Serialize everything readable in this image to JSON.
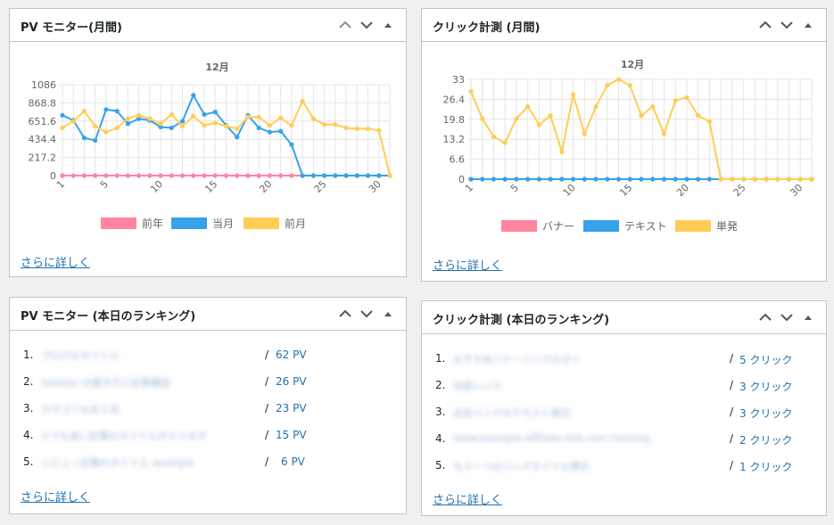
{
  "colors": {
    "prev": "#ff85a1",
    "cur": "#36a2eb",
    "last": "#ffcd56",
    "link": "#2271b1"
  },
  "widgets": {
    "pv_monthly": {
      "title": "PV モニター(月間)",
      "more_label": "さらに詳しく"
    },
    "click_monthly": {
      "title": "クリック計測 (月間)",
      "more_label": "さらに詳しく"
    },
    "pv_ranking": {
      "title": "PV モニター (本日のランキング)",
      "more_label": "さらに詳しく",
      "rows": [
        {
          "num": "1.",
          "name": "ブログのタイトル",
          "sep": "/",
          "value": "62 PV"
        },
        {
          "num": "2.",
          "name": "Sshelps の書き方と記事構成",
          "sep": "/",
          "value": "26 PV"
        },
        {
          "num": "3.",
          "name": "カテゴリのまとめ",
          "sep": "/",
          "value": "23 PV"
        },
        {
          "num": "4.",
          "name": "とても長い記事のタイトルが入ります",
          "sep": "/",
          "value": "15 PV"
        },
        {
          "num": "5.",
          "name": "レビュー記事のタイトル example",
          "sep": "/",
          "value": "6 PV"
        }
      ]
    },
    "click_ranking": {
      "title": "クリック計測 (本日のランキング)",
      "more_label": "さらに詳しく",
      "rows": [
        {
          "num": "1.",
          "name": "おすすめバナーリンクのタイトル",
          "sep": "/",
          "value": "5 クリック"
        },
        {
          "num": "2.",
          "name": "外部リンク",
          "sep": "/",
          "value": "3 クリック"
        },
        {
          "num": "3.",
          "name": "広告リンクのテキスト表示",
          "sep": "/",
          "value": "3 クリック"
        },
        {
          "num": "4.",
          "name": "www.example-affiliate-link.com tracking",
          "sep": "/",
          "value": "2 クリック"
        },
        {
          "num": "5.",
          "name": "もう一つのリンクタイトル表示",
          "sep": "/",
          "value": "1 クリック"
        }
      ]
    }
  },
  "chart_data": [
    {
      "type": "line",
      "title": "12月",
      "x_ticks": [
        "1",
        "5",
        "10",
        "15",
        "20",
        "25",
        "30"
      ],
      "y_ticks": [
        "0",
        "217.2",
        "434.4",
        "651.6",
        "868.8",
        "1086"
      ],
      "ylim": [
        0,
        1086
      ],
      "x": [
        1,
        2,
        3,
        4,
        5,
        6,
        7,
        8,
        9,
        10,
        11,
        12,
        13,
        14,
        15,
        16,
        17,
        18,
        19,
        20,
        21,
        22,
        23,
        24,
        25,
        26,
        27,
        28,
        29,
        30,
        31
      ],
      "series": [
        {
          "name": "前年",
          "color": "#ff85a1",
          "values": [
            0,
            0,
            0,
            0,
            0,
            0,
            0,
            0,
            0,
            0,
            0,
            0,
            0,
            0,
            0,
            0,
            0,
            0,
            0,
            0,
            0,
            0,
            0,
            0,
            0,
            0,
            0,
            0,
            0,
            0,
            0
          ]
        },
        {
          "name": "当月",
          "color": "#36a2eb",
          "values": [
            720,
            660,
            450,
            420,
            790,
            770,
            620,
            680,
            660,
            580,
            570,
            650,
            960,
            730,
            760,
            600,
            460,
            720,
            570,
            520,
            530,
            370,
            0,
            0,
            0,
            0,
            0,
            0,
            0,
            0,
            0
          ]
        },
        {
          "name": "前月",
          "color": "#ffcd56",
          "values": [
            570,
            650,
            770,
            590,
            520,
            570,
            680,
            720,
            680,
            620,
            730,
            590,
            710,
            600,
            630,
            590,
            560,
            700,
            700,
            600,
            690,
            600,
            890,
            680,
            610,
            610,
            570,
            560,
            560,
            540,
            0
          ]
        }
      ]
    },
    {
      "type": "line",
      "title": "12月",
      "x_ticks": [
        "1",
        "5",
        "10",
        "15",
        "20",
        "25",
        "30"
      ],
      "y_ticks": [
        "0",
        "6.6",
        "13.2",
        "19.8",
        "26.4",
        "33"
      ],
      "ylim": [
        0,
        33
      ],
      "x": [
        1,
        2,
        3,
        4,
        5,
        6,
        7,
        8,
        9,
        10,
        11,
        12,
        13,
        14,
        15,
        16,
        17,
        18,
        19,
        20,
        21,
        22,
        23,
        24,
        25,
        26,
        27,
        28,
        29,
        30,
        31
      ],
      "series": [
        {
          "name": "バナー",
          "color": "#ff85a1",
          "values": [
            0,
            0,
            0,
            0,
            0,
            0,
            0,
            0,
            0,
            0,
            0,
            0,
            0,
            0,
            0,
            0,
            0,
            0,
            0,
            0,
            0,
            0,
            0,
            0,
            0,
            0,
            0,
            0,
            0,
            0,
            0
          ]
        },
        {
          "name": "テキスト",
          "color": "#36a2eb",
          "values": [
            0,
            0,
            0,
            0,
            0,
            0,
            0,
            0,
            0,
            0,
            0,
            0,
            0,
            0,
            0,
            0,
            0,
            0,
            0,
            0,
            0,
            0,
            0,
            0,
            0,
            0,
            0,
            0,
            0,
            0,
            0
          ]
        },
        {
          "name": "単発",
          "color": "#ffcd56",
          "values": [
            29,
            20,
            14,
            12,
            20,
            24,
            18,
            21,
            9,
            28,
            15,
            24,
            31,
            33,
            31,
            21,
            24,
            15,
            26,
            27,
            21,
            19,
            0,
            0,
            0,
            0,
            0,
            0,
            0,
            0,
            0
          ]
        }
      ]
    }
  ]
}
